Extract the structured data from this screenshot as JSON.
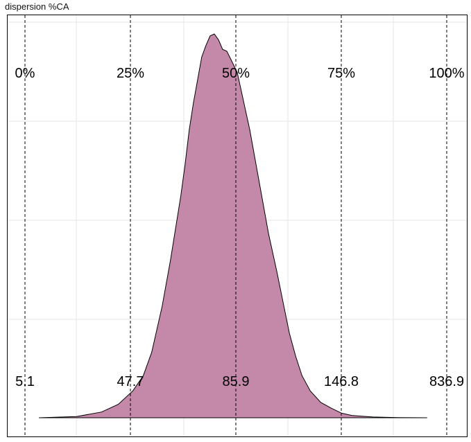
{
  "chart_data": {
    "type": "area",
    "title": "dispersion %CA",
    "xlabel": "",
    "ylabel": "",
    "fill_color": "#c489a9",
    "grid": true,
    "quantiles": [
      {
        "label": "0%",
        "value": "5.1"
      },
      {
        "label": "25%",
        "value": "47.7"
      },
      {
        "label": "50%",
        "value": "85.9"
      },
      {
        "label": "75%",
        "value": "146.8"
      },
      {
        "label": "100%",
        "value": "836.9"
      }
    ],
    "density_profile": {
      "x": [
        0,
        0.18,
        0.3,
        0.38,
        0.45,
        0.5,
        0.54,
        0.59,
        0.63,
        0.68,
        0.7,
        0.72,
        0.74,
        0.76,
        0.78,
        0.8,
        0.82,
        0.84,
        0.86,
        0.88,
        0.9,
        0.95,
        1.01,
        1.06,
        1.1,
        1.14,
        1.17,
        1.2,
        1.23,
        1.26,
        1.3,
        1.35,
        1.4,
        1.45,
        1.5,
        1.6,
        1.72,
        1.86
      ],
      "y": [
        0,
        0.003,
        0.015,
        0.035,
        0.07,
        0.11,
        0.17,
        0.29,
        0.41,
        0.58,
        0.66,
        0.75,
        0.82,
        0.88,
        0.94,
        0.97,
        0.995,
        1.0,
        0.985,
        0.96,
        0.955,
        0.9,
        0.75,
        0.6,
        0.48,
        0.38,
        0.3,
        0.22,
        0.16,
        0.11,
        0.07,
        0.04,
        0.025,
        0.012,
        0.006,
        0.002,
        0.0005,
        0
      ]
    }
  }
}
